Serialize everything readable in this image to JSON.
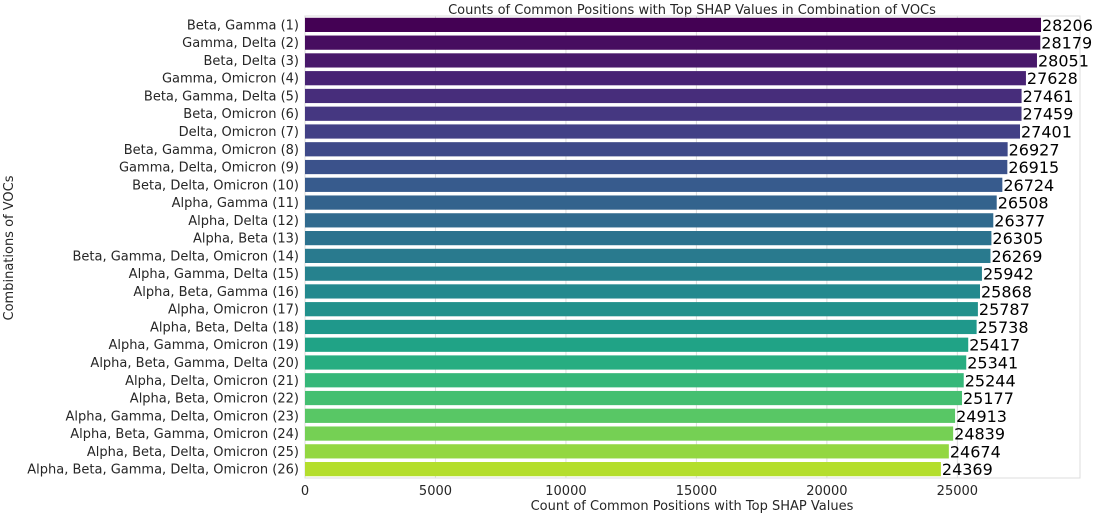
{
  "chart_data": {
    "type": "bar",
    "orientation": "horizontal",
    "title": "Counts of Common Positions with Top SHAP Values in Combination of VOCs",
    "xlabel": "Count of Common Positions with Top SHAP Values",
    "ylabel": "Combinations of VOCs",
    "xlim": [
      0,
      29700
    ],
    "xticks": [
      0,
      5000,
      10000,
      15000,
      20000,
      25000
    ],
    "grid": true,
    "colormap": "viridis",
    "categories": [
      "Beta, Gamma (1)",
      "Gamma, Delta (2)",
      "Beta, Delta (3)",
      "Gamma, Omicron (4)",
      "Beta, Gamma, Delta (5)",
      "Beta, Omicron (6)",
      "Delta, Omicron (7)",
      "Beta, Gamma, Omicron (8)",
      "Gamma, Delta, Omicron (9)",
      "Beta, Delta, Omicron (10)",
      "Alpha, Gamma (11)",
      "Alpha, Delta (12)",
      "Alpha, Beta (13)",
      "Beta, Gamma, Delta, Omicron (14)",
      "Alpha, Gamma, Delta (15)",
      "Alpha, Beta, Gamma (16)",
      "Alpha, Omicron (17)",
      "Alpha, Beta, Delta (18)",
      "Alpha, Gamma, Omicron (19)",
      "Alpha, Beta, Gamma, Delta (20)",
      "Alpha, Delta, Omicron (21)",
      "Alpha, Beta, Omicron (22)",
      "Alpha, Gamma, Delta, Omicron (23)",
      "Alpha, Beta, Gamma, Omicron (24)",
      "Alpha, Beta, Delta, Omicron (25)",
      "Alpha, Beta, Gamma, Delta, Omicron (26)"
    ],
    "values": [
      28206,
      28179,
      28051,
      27628,
      27461,
      27459,
      27401,
      26927,
      26915,
      26724,
      26508,
      26377,
      26305,
      26269,
      25942,
      25868,
      25787,
      25738,
      25417,
      25341,
      25244,
      25177,
      24913,
      24839,
      24674,
      24369
    ],
    "colors": [
      "#440154",
      "#470d60",
      "#48186a",
      "#482374",
      "#472d7b",
      "#453781",
      "#424086",
      "#3e4989",
      "#3b528b",
      "#375b8d",
      "#33638d",
      "#306a8e",
      "#2c728e",
      "#297a8e",
      "#26828e",
      "#23898e",
      "#21918c",
      "#1f988b",
      "#20a386",
      "#27ad81",
      "#35b779",
      "#44bf70",
      "#58c765",
      "#75d054",
      "#93d741",
      "#b4de2c"
    ]
  }
}
